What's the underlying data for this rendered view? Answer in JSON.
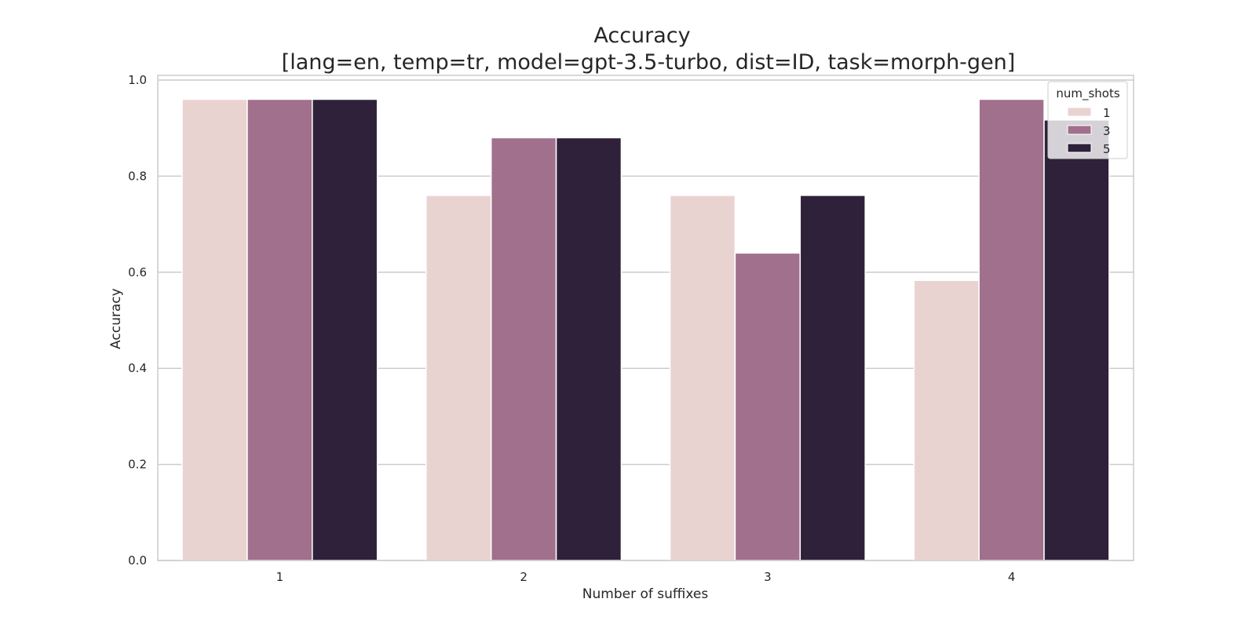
{
  "chart_data": {
    "type": "bar",
    "title_line1": "Accuracy",
    "title_line2": "[lang=en, temp=tr, model=gpt-3.5-turbo, dist=ID, task=morph-gen]",
    "xlabel": "Number of suffixes",
    "ylabel": "Accuracy",
    "categories": [
      "1",
      "2",
      "3",
      "4"
    ],
    "ylim": [
      0,
      1.0
    ],
    "yticks": [
      "0.0",
      "0.2",
      "0.4",
      "0.6",
      "0.8",
      "1.0"
    ],
    "grid": true,
    "legend": {
      "title": "num_shots",
      "placement": "top-right"
    },
    "series": [
      {
        "name": "1",
        "color": "#e9d3d0",
        "values": [
          0.96,
          0.76,
          0.76,
          0.583
        ]
      },
      {
        "name": "3",
        "color": "#a0708c",
        "values": [
          0.96,
          0.88,
          0.64,
          0.96
        ]
      },
      {
        "name": "5",
        "color": "#2e2139",
        "values": [
          0.96,
          0.88,
          0.76,
          0.917
        ]
      }
    ]
  }
}
